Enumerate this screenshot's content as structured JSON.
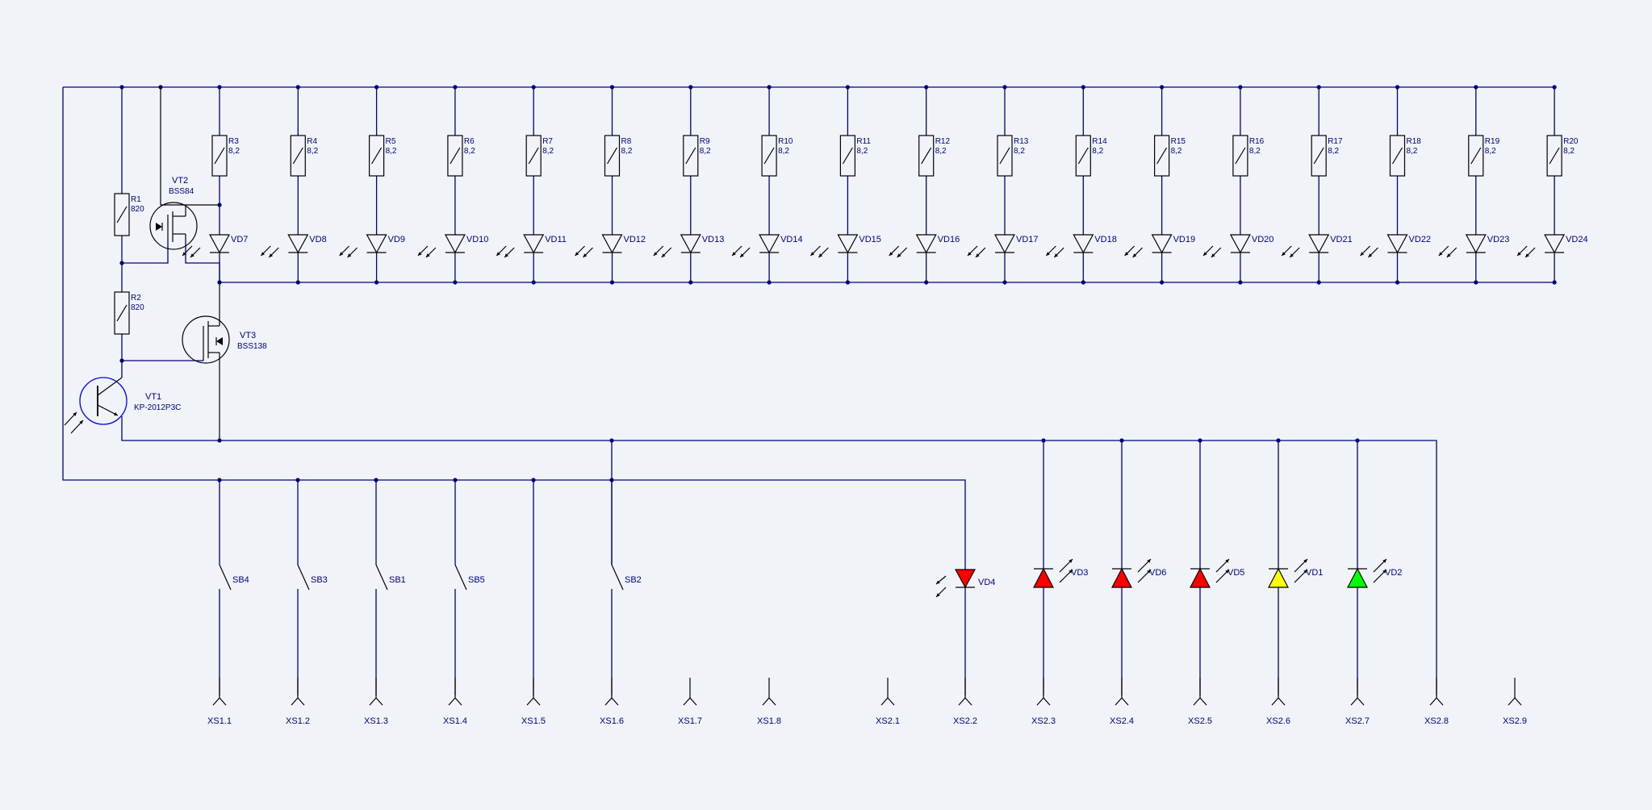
{
  "colors": {
    "background": "#f0f4f8",
    "wire": "#000080",
    "component": "#000000",
    "led_red": "#ff0000",
    "led_yellow": "#ffff00",
    "led_green": "#00ff00",
    "highlight": "#0000ff"
  },
  "sensor_chain": {
    "r1": {
      "name": "R1",
      "value": "820 "
    },
    "r2": {
      "name": "R2",
      "value": "820 "
    },
    "vt2": {
      "name": "VT2",
      "part": "BSS84"
    },
    "vt3": {
      "name": "VT3",
      "part": "BSS138"
    },
    "vt1": {
      "name": "VT1",
      "part": "KP-2012P3C"
    }
  },
  "led_bank": [
    {
      "resistor": "R3",
      "value": "8,2 ",
      "led": "VD7"
    },
    {
      "resistor": "R4",
      "value": "8,2 ",
      "led": "VD8"
    },
    {
      "resistor": "R5",
      "value": "8,2 ",
      "led": "VD9"
    },
    {
      "resistor": "R6",
      "value": "8,2 ",
      "led": "VD10"
    },
    {
      "resistor": "R7",
      "value": "8,2 ",
      "led": "VD11"
    },
    {
      "resistor": "R8",
      "value": "8,2 ",
      "led": "VD12"
    },
    {
      "resistor": "R9",
      "value": "8,2 ",
      "led": "VD13"
    },
    {
      "resistor": "R10",
      "value": "8,2 ",
      "led": "VD14"
    },
    {
      "resistor": "R11",
      "value": "8,2 ",
      "led": "VD15"
    },
    {
      "resistor": "R12",
      "value": "8,2 ",
      "led": "VD16"
    },
    {
      "resistor": "R13",
      "value": "8,2 ",
      "led": "VD17"
    },
    {
      "resistor": "R14",
      "value": "8,2 ",
      "led": "VD18"
    },
    {
      "resistor": "R15",
      "value": "8,2 ",
      "led": "VD19"
    },
    {
      "resistor": "R16",
      "value": "8,2 ",
      "led": "VD20"
    },
    {
      "resistor": "R17",
      "value": "8,2 ",
      "led": "VD21"
    },
    {
      "resistor": "R18",
      "value": "8,2 ",
      "led": "VD22"
    },
    {
      "resistor": "R19",
      "value": "8,2 ",
      "led": "VD23"
    },
    {
      "resistor": "R20",
      "value": "8,2 ",
      "led": "VD24"
    }
  ],
  "switches": [
    "SB4",
    "SB3",
    "SB1",
    "SB5",
    "SB2"
  ],
  "indicator_leds": [
    {
      "name": "VD4",
      "color": "red",
      "emits": false
    },
    {
      "name": "VD3",
      "color": "red",
      "emits": true
    },
    {
      "name": "VD6",
      "color": "red",
      "emits": true
    },
    {
      "name": "VD5",
      "color": "red",
      "emits": true
    },
    {
      "name": "VD1",
      "color": "yellow",
      "emits": true
    },
    {
      "name": "VD2",
      "color": "green",
      "emits": true
    }
  ],
  "connectors": [
    "XS1.1",
    "XS1.2",
    "XS1.3",
    "XS1.4",
    "XS1.5",
    "XS1.6",
    "XS1.7",
    "XS1.8",
    "XS2.1",
    "XS2.2",
    "XS2.3",
    "XS2.4",
    "XS2.5",
    "XS2.6",
    "XS2.7",
    "XS2.8",
    "XS2.9"
  ]
}
